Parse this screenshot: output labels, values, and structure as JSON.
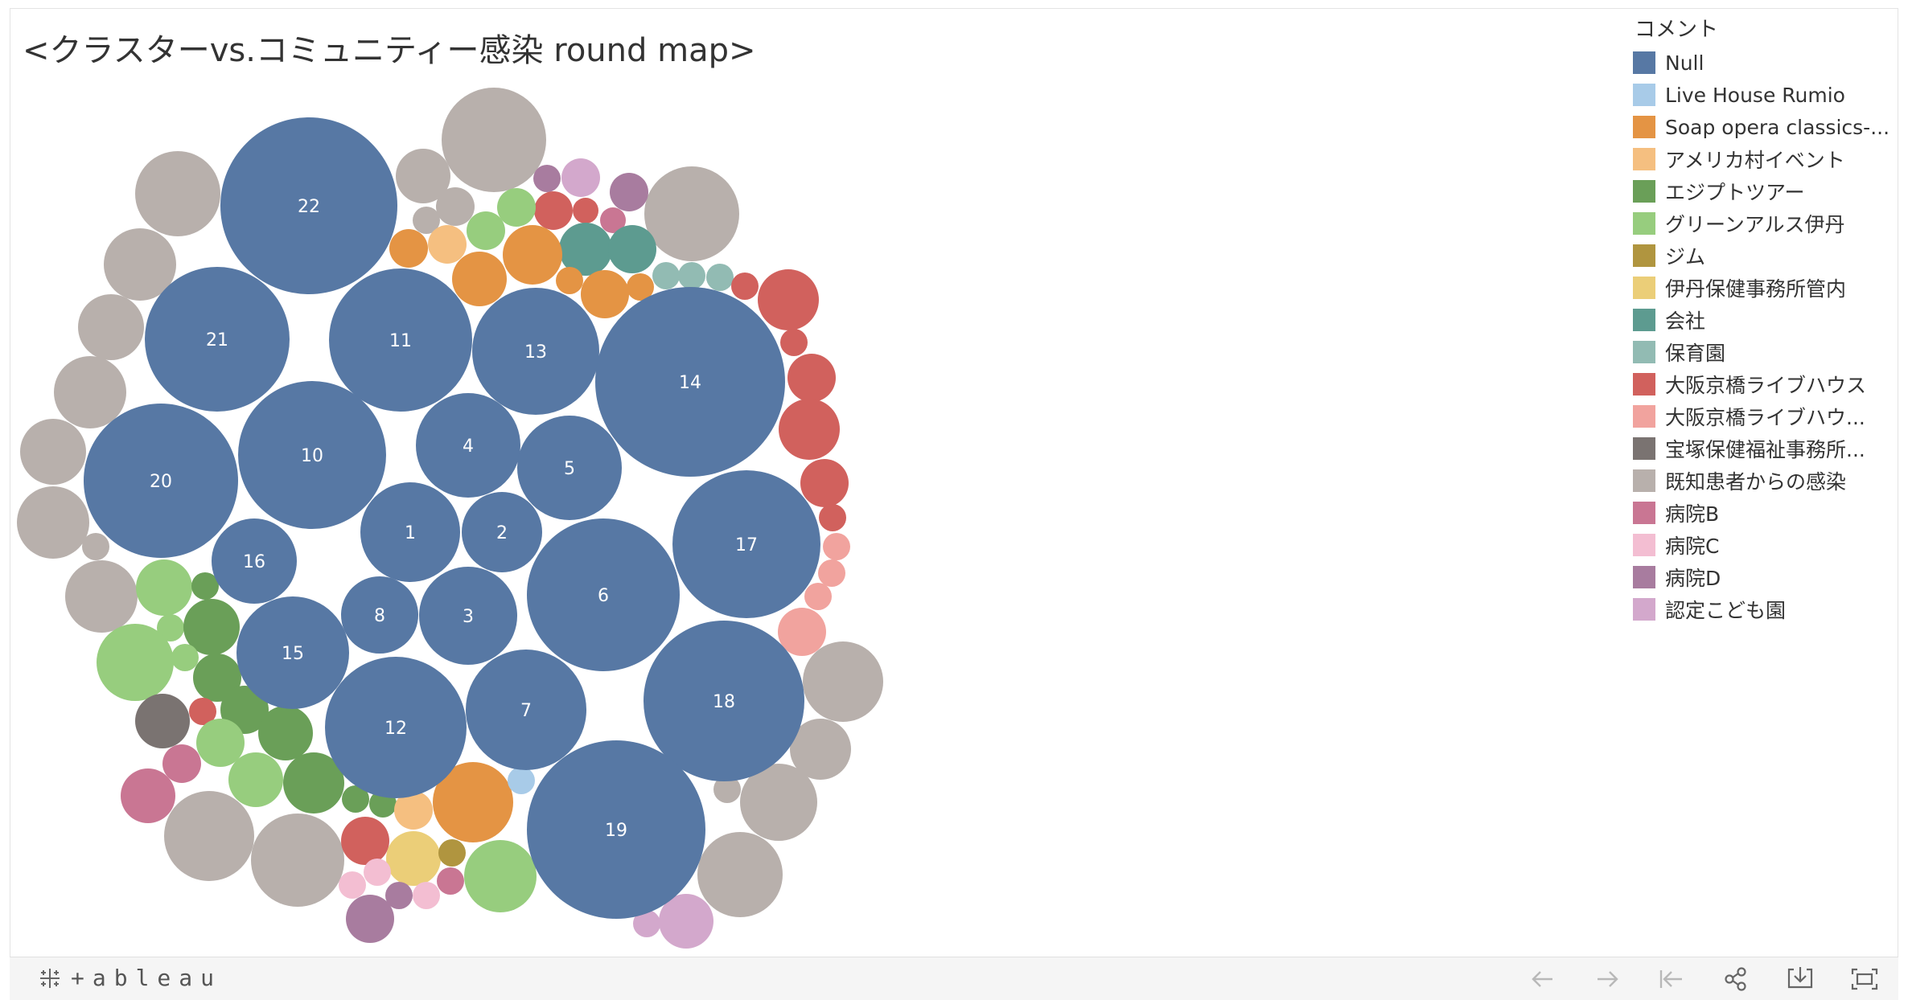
{
  "chart_title": "<クラスターvs.コミュニティー感染 round map>",
  "legend_title": "コメント",
  "legend": [
    {
      "label": "Null",
      "color": "#5778a4"
    },
    {
      "label": "Live House Rumio",
      "color": "#a8cbe8"
    },
    {
      "label": "Soap opera classics-...",
      "color": "#e49444"
    },
    {
      "label": "アメリカ村イベント",
      "color": "#f5bf80"
    },
    {
      "label": "エジプトツアー",
      "color": "#6a9f58"
    },
    {
      "label": "グリーンアルス伊丹",
      "color": "#97cd7e"
    },
    {
      "label": "ジム",
      "color": "#b0953f"
    },
    {
      "label": "伊丹保健事務所管内",
      "color": "#ebce78"
    },
    {
      "label": "会社",
      "color": "#5d9b90"
    },
    {
      "label": "保育園",
      "color": "#92bbb3"
    },
    {
      "label": "大阪京橋ライブハウス",
      "color": "#d1615d"
    },
    {
      "label": "大阪京橋ライブハウ...",
      "color": "#f1a39e"
    },
    {
      "label": "宝塚保健福祉事務所...",
      "color": "#7a7371"
    },
    {
      "label": "既知患者からの感染",
      "color": "#b8b0ac"
    },
    {
      "label": "病院B",
      "color": "#c97693"
    },
    {
      "label": "病院C",
      "color": "#f3bed2"
    },
    {
      "label": "病院D",
      "color": "#a87c9f"
    },
    {
      "label": "認定こども園",
      "color": "#d3a8cc"
    }
  ],
  "chart_data": {
    "type": "packed-bubble",
    "title": "<クラスターvs.コミュニティー感染 round map>",
    "color_field": "コメント",
    "labeled_bubbles": [
      {
        "label": "1",
        "category": "Null"
      },
      {
        "label": "2",
        "category": "Null"
      },
      {
        "label": "3",
        "category": "Null"
      },
      {
        "label": "4",
        "category": "Null"
      },
      {
        "label": "5",
        "category": "Null"
      },
      {
        "label": "6",
        "category": "Null"
      },
      {
        "label": "7",
        "category": "Null"
      },
      {
        "label": "8",
        "category": "Null"
      },
      {
        "label": "10",
        "category": "Null"
      },
      {
        "label": "11",
        "category": "Null"
      },
      {
        "label": "12",
        "category": "Null"
      },
      {
        "label": "13",
        "category": "Null"
      },
      {
        "label": "14",
        "category": "Null"
      },
      {
        "label": "15",
        "category": "Null"
      },
      {
        "label": "16",
        "category": "Null"
      },
      {
        "label": "17",
        "category": "Null"
      },
      {
        "label": "18",
        "category": "Null"
      },
      {
        "label": "19",
        "category": "Null"
      },
      {
        "label": "20",
        "category": "Null"
      },
      {
        "label": "21",
        "category": "Null"
      },
      {
        "label": "22",
        "category": "Null"
      }
    ]
  },
  "footer": {
    "brand": "+ableau"
  }
}
